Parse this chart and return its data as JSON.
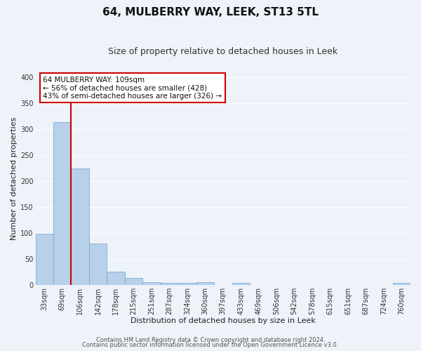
{
  "title": "64, MULBERRY WAY, LEEK, ST13 5TL",
  "subtitle": "Size of property relative to detached houses in Leek",
  "xlabel": "Distribution of detached houses by size in Leek",
  "ylabel": "Number of detached properties",
  "categories": [
    "33sqm",
    "69sqm",
    "106sqm",
    "142sqm",
    "178sqm",
    "215sqm",
    "251sqm",
    "287sqm",
    "324sqm",
    "360sqm",
    "397sqm",
    "433sqm",
    "469sqm",
    "506sqm",
    "542sqm",
    "578sqm",
    "615sqm",
    "651sqm",
    "687sqm",
    "724sqm",
    "760sqm"
  ],
  "values": [
    99,
    313,
    224,
    80,
    26,
    14,
    5,
    4,
    4,
    6,
    0,
    4,
    0,
    0,
    0,
    0,
    0,
    0,
    0,
    0,
    4
  ],
  "bar_color": "#b8d0ea",
  "bar_edge_color": "#7aafd4",
  "vline_color": "#cc0000",
  "annotation_text": "64 MULBERRY WAY: 109sqm\n← 56% of detached houses are smaller (428)\n43% of semi-detached houses are larger (326) →",
  "annotation_box_color": "#ffffff",
  "annotation_box_edge_color": "#cc0000",
  "ylim": [
    0,
    410
  ],
  "yticks": [
    0,
    50,
    100,
    150,
    200,
    250,
    300,
    350,
    400
  ],
  "footer_line1": "Contains HM Land Registry data © Crown copyright and database right 2024.",
  "footer_line2": "Contains public sector information licensed under the Open Government Licence v3.0.",
  "background_color": "#eef2f9",
  "grid_color": "#ffffff",
  "title_fontsize": 11,
  "subtitle_fontsize": 9,
  "axis_label_fontsize": 8,
  "tick_fontsize": 7,
  "footer_fontsize": 6,
  "annot_fontsize": 7.5
}
